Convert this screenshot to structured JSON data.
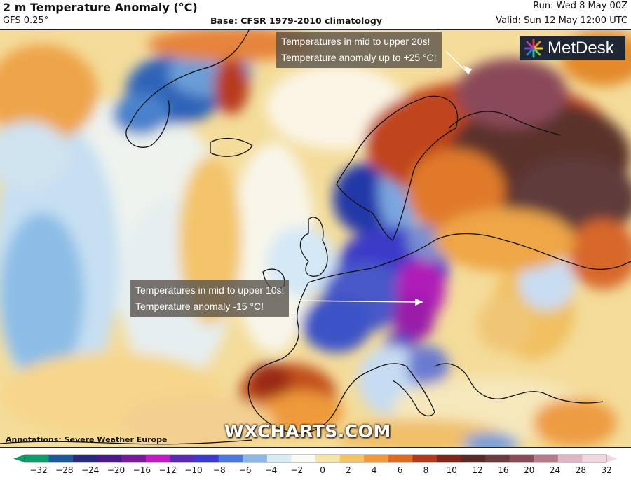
{
  "header": {
    "title": "2 m Temperature Anomaly (°C)",
    "model": "GFS 0.25°",
    "base": "Base: CFSR 1979-2010 climatology",
    "run": "Run: Wed 8 May 00Z",
    "valid": "Valid: Sun 12 May 12:00 UTC"
  },
  "annotations": {
    "east": {
      "line1": "Temperatures in mid to upper 20s!",
      "line2": "Temperature anomaly up to +25 °C!"
    },
    "central": {
      "line1": "Temperatures in mid to upper 10s!",
      "line2": "Temperature anomaly -15 °C!"
    }
  },
  "logo": {
    "text": "MetDesk"
  },
  "watermark": "WXCHARTS.COM",
  "credit": "Annotations: Severe Weather Europe",
  "legend": {
    "ticks": [
      "−32",
      "−28",
      "−24",
      "−20",
      "−16",
      "−12",
      "−10",
      "−8",
      "−6",
      "−4",
      "−2",
      "0",
      "2",
      "4",
      "6",
      "8",
      "10",
      "12",
      "16",
      "20",
      "24",
      "28",
      "32"
    ],
    "colors": [
      "#0c9c6e",
      "#1c5a9a",
      "#2a2a7a",
      "#4a1a8a",
      "#7a1a9a",
      "#c21ac2",
      "#5a2ab0",
      "#3a3ad0",
      "#4a78d8",
      "#8ab8e6",
      "#d8ecf8",
      "#fbfbf6",
      "#f6e6a6",
      "#f2c466",
      "#ee9a3a",
      "#de6a22",
      "#b23a1a",
      "#7e2618",
      "#5a2a26",
      "#6a3a3e",
      "#8a4a5a",
      "#b67a8a",
      "#e0b4c2",
      "#f2d6e0"
    ]
  }
}
